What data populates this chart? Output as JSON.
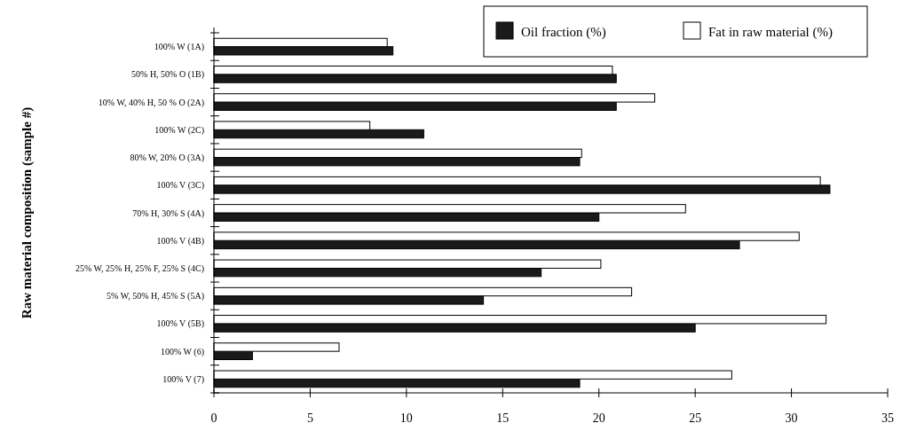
{
  "chart_data": {
    "type": "bar",
    "orientation": "horizontal",
    "ylabel": "Raw material composition (sample #)",
    "categories": [
      "100% W (1A)",
      "50% H, 50% O (1B)",
      "10% W, 40% H, 50 % O (2A)",
      "100% W (2C)",
      "80% W, 20% O (3A)",
      "100% V (3C)",
      "70% H, 30% S (4A)",
      "100% V (4B)",
      "25% W, 25% H, 25% F, 25% S (4C)",
      "5% W, 50% H, 45% S (5A)",
      "100% V (5B)",
      "100% W (6)",
      "100% V (7)"
    ],
    "series": [
      {
        "name": "Oil fraction (%)",
        "color": "#1a1a1a",
        "values": [
          9.3,
          20.9,
          20.9,
          10.9,
          19.0,
          32.0,
          20.0,
          27.3,
          17.0,
          14.0,
          25.0,
          2.0,
          19.0
        ]
      },
      {
        "name": "Fat in raw material (%)",
        "color": "#ffffff",
        "values": [
          9.0,
          20.7,
          22.9,
          8.1,
          19.1,
          31.5,
          24.5,
          30.4,
          20.1,
          21.7,
          31.8,
          6.5,
          26.9
        ]
      }
    ],
    "xlim": [
      0,
      35
    ],
    "xticks": [
      0,
      5,
      10,
      15,
      20,
      25,
      30,
      35
    ],
    "grid": false,
    "legend": "top right"
  }
}
